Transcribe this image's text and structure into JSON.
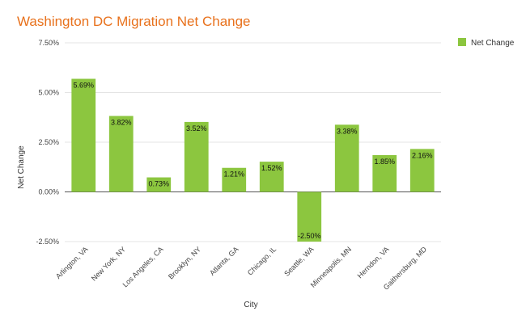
{
  "chart_data": {
    "type": "bar",
    "title": "Washington DC Migration Net Change",
    "xlabel": "City",
    "ylabel": "Net Change",
    "categories": [
      "Arlington, VA",
      "New York, NY",
      "Los Angeles, CA",
      "Brooklyn, NY",
      "Atlanta, GA",
      "Chicago, IL",
      "Seattle, WA",
      "Minneapolis, MN",
      "Herndon, VA",
      "Gaithersburg, MD"
    ],
    "series": [
      {
        "name": "Net Change",
        "values": [
          5.69,
          3.82,
          0.73,
          3.52,
          1.21,
          1.52,
          -2.5,
          3.38,
          1.85,
          2.16
        ],
        "labels": [
          "5.69%",
          "3.82%",
          "0.73%",
          "3.52%",
          "1.21%",
          "1.52%",
          "-2.50%",
          "3.38%",
          "1.85%",
          "2.16%"
        ],
        "color": "#8cc63f"
      }
    ],
    "ylim": [
      -2.5,
      7.5
    ],
    "yticks": [
      -2.5,
      0,
      2.5,
      5,
      7.5
    ],
    "ytick_labels": [
      "-2.50%",
      "0.00%",
      "2.50%",
      "5.00%",
      "7.50%"
    ],
    "grid": true,
    "legend": "top-right",
    "colors": {
      "title": "#e8711c",
      "bar": "#8cc63f"
    }
  }
}
